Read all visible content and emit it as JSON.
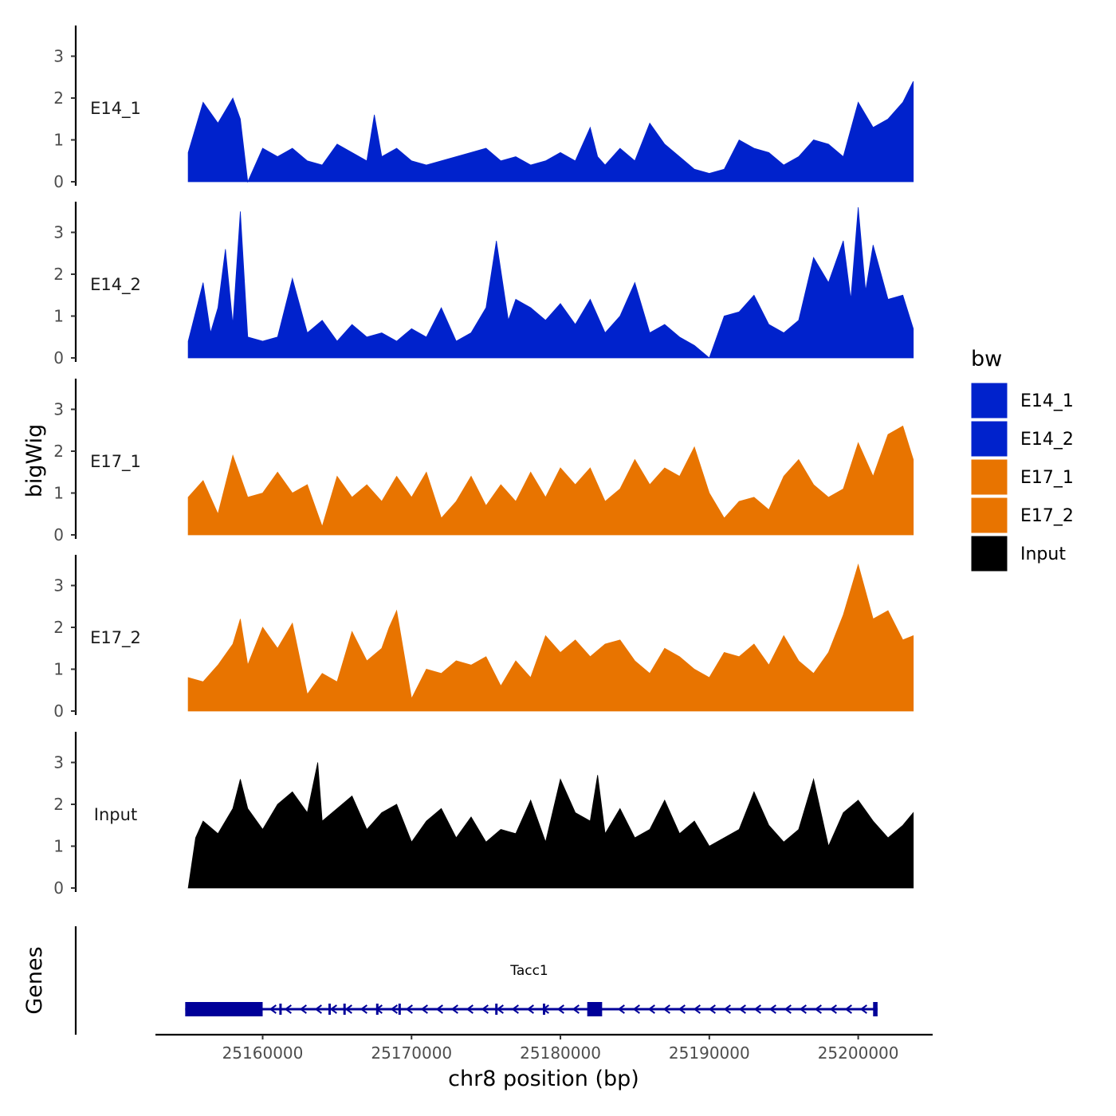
{
  "chart_data": {
    "type": "area",
    "title": "",
    "xlabel": "chr8 position (bp)",
    "ylabel": "bigWig",
    "genes_label": "Genes",
    "xlim": [
      25152800,
      25205000
    ],
    "x_ticks": [
      25160000,
      25170000,
      25180000,
      25190000,
      25200000
    ],
    "x_tick_labels": [
      "25160000",
      "25170000",
      "25180000",
      "25190000",
      "25200000"
    ],
    "ylim": [
      0,
      3.7
    ],
    "y_ticks": [
      0,
      1,
      2,
      3
    ],
    "y_tick_labels": [
      "0",
      "1",
      "2",
      "3"
    ],
    "legend": {
      "title": "bw",
      "position": "right",
      "entries": [
        {
          "name": "E14_1",
          "color": "#0022CC"
        },
        {
          "name": "E14_2",
          "color": "#0022CC"
        },
        {
          "name": "E17_1",
          "color": "#E87400"
        },
        {
          "name": "E17_2",
          "color": "#E87400"
        },
        {
          "name": "Input",
          "color": "#000000"
        }
      ]
    },
    "tracks": [
      {
        "name": "E14_1",
        "color": "#0022CC",
        "x": [
          25155000,
          25156000,
          25157000,
          25158000,
          25158500,
          25159000,
          25160000,
          25161000,
          25162000,
          25163000,
          25164000,
          25165000,
          25166000,
          25167000,
          25167500,
          25168000,
          25169000,
          25170000,
          25171000,
          25172000,
          25173000,
          25174000,
          25175000,
          25176000,
          25177000,
          25178000,
          25179000,
          25180000,
          25181000,
          25182000,
          25182500,
          25183000,
          25184000,
          25185000,
          25186000,
          25187000,
          25188000,
          25189000,
          25190000,
          25191000,
          25192000,
          25193000,
          25194000,
          25195000,
          25196000,
          25197000,
          25198000,
          25199000,
          25200000,
          25201000,
          25202000,
          25203000,
          25203700
        ],
        "values": [
          0.7,
          1.9,
          1.4,
          2.0,
          1.5,
          0,
          0.8,
          0.6,
          0.8,
          0.5,
          0.4,
          0.9,
          0.7,
          0.5,
          1.6,
          0.6,
          0.8,
          0.5,
          0.4,
          0.5,
          0.6,
          0.7,
          0.8,
          0.5,
          0.6,
          0.4,
          0.5,
          0.7,
          0.5,
          1.3,
          0.6,
          0.4,
          0.8,
          0.5,
          1.4,
          0.9,
          0.6,
          0.3,
          0.2,
          0.3,
          1.0,
          0.8,
          0.7,
          0.4,
          0.6,
          1.0,
          0.9,
          0.6,
          1.9,
          1.3,
          1.5,
          1.9,
          2.4
        ]
      },
      {
        "name": "E14_2",
        "color": "#0022CC",
        "x": [
          25155000,
          25156000,
          25156500,
          25157000,
          25157500,
          25158000,
          25158500,
          25159000,
          25160000,
          25161000,
          25162000,
          25163000,
          25164000,
          25165000,
          25166000,
          25167000,
          25168000,
          25169000,
          25170000,
          25171000,
          25172000,
          25173000,
          25174000,
          25175000,
          25175700,
          25176500,
          25177000,
          25178000,
          25179000,
          25180000,
          25181000,
          25182000,
          25183000,
          25184000,
          25185000,
          25186000,
          25187000,
          25188000,
          25189000,
          25190000,
          25191000,
          25192000,
          25193000,
          25194000,
          25195000,
          25196000,
          25197000,
          25198000,
          25199000,
          25199500,
          25200000,
          25200500,
          25201000,
          25202000,
          25203000,
          25203700
        ],
        "values": [
          0.4,
          1.8,
          0.6,
          1.2,
          2.6,
          0.8,
          3.5,
          0.5,
          0.4,
          0.5,
          1.9,
          0.6,
          0.9,
          0.4,
          0.8,
          0.5,
          0.6,
          0.4,
          0.7,
          0.5,
          1.2,
          0.4,
          0.6,
          1.2,
          2.8,
          0.9,
          1.4,
          1.2,
          0.9,
          1.3,
          0.8,
          1.4,
          0.6,
          1.0,
          1.8,
          0.6,
          0.8,
          0.5,
          0.3,
          0,
          1.0,
          1.1,
          1.5,
          0.8,
          0.6,
          0.9,
          2.4,
          1.8,
          2.8,
          1.4,
          3.6,
          1.6,
          2.7,
          1.4,
          1.5,
          0.7
        ]
      },
      {
        "name": "E17_1",
        "color": "#E87400",
        "x": [
          25155000,
          25156000,
          25157000,
          25158000,
          25159000,
          25160000,
          25161000,
          25162000,
          25163000,
          25164000,
          25165000,
          25166000,
          25167000,
          25168000,
          25169000,
          25170000,
          25171000,
          25172000,
          25173000,
          25174000,
          25175000,
          25176000,
          25177000,
          25178000,
          25179000,
          25180000,
          25181000,
          25182000,
          25183000,
          25184000,
          25185000,
          25186000,
          25187000,
          25188000,
          25189000,
          25190000,
          25191000,
          25192000,
          25193000,
          25194000,
          25195000,
          25196000,
          25197000,
          25198000,
          25199000,
          25200000,
          25201000,
          25202000,
          25203000,
          25203700
        ],
        "values": [
          0.9,
          1.3,
          0.5,
          1.9,
          0.9,
          1.0,
          1.5,
          1.0,
          1.2,
          0.2,
          1.4,
          0.9,
          1.2,
          0.8,
          1.4,
          0.9,
          1.5,
          0.4,
          0.8,
          1.4,
          0.7,
          1.2,
          0.8,
          1.5,
          0.9,
          1.6,
          1.2,
          1.6,
          0.8,
          1.1,
          1.8,
          1.2,
          1.6,
          1.4,
          2.1,
          1.0,
          0.4,
          0.8,
          0.9,
          0.6,
          1.4,
          1.8,
          1.2,
          0.9,
          1.1,
          2.2,
          1.4,
          2.4,
          2.6,
          1.8
        ]
      },
      {
        "name": "E17_2",
        "color": "#E87400",
        "x": [
          25155000,
          25156000,
          25157000,
          25158000,
          25158500,
          25159000,
          25160000,
          25161000,
          25162000,
          25163000,
          25164000,
          25165000,
          25166000,
          25167000,
          25168000,
          25168500,
          25169000,
          25170000,
          25171000,
          25172000,
          25173000,
          25174000,
          25175000,
          25176000,
          25177000,
          25178000,
          25179000,
          25180000,
          25181000,
          25182000,
          25183000,
          25184000,
          25185000,
          25186000,
          25187000,
          25188000,
          25189000,
          25190000,
          25191000,
          25192000,
          25193000,
          25194000,
          25195000,
          25196000,
          25197000,
          25198000,
          25199000,
          25200000,
          25201000,
          25202000,
          25203000,
          25203700
        ],
        "values": [
          0.8,
          0.7,
          1.1,
          1.6,
          2.2,
          1.1,
          2.0,
          1.5,
          2.1,
          0.4,
          0.9,
          0.7,
          1.9,
          1.2,
          1.5,
          2.0,
          2.4,
          0.3,
          1.0,
          0.9,
          1.2,
          1.1,
          1.3,
          0.6,
          1.2,
          0.8,
          1.8,
          1.4,
          1.7,
          1.3,
          1.6,
          1.7,
          1.2,
          0.9,
          1.5,
          1.3,
          1.0,
          0.8,
          1.4,
          1.3,
          1.6,
          1.1,
          1.8,
          1.2,
          0.9,
          1.4,
          2.3,
          3.5,
          2.2,
          2.4,
          1.7,
          1.8
        ]
      },
      {
        "name": "Input",
        "color": "#000000",
        "x": [
          25155000,
          25155500,
          25156000,
          25157000,
          25158000,
          25158500,
          25159000,
          25160000,
          25161000,
          25162000,
          25163000,
          25163700,
          25164000,
          25165000,
          25166000,
          25167000,
          25168000,
          25169000,
          25170000,
          25171000,
          25172000,
          25173000,
          25174000,
          25175000,
          25176000,
          25177000,
          25178000,
          25179000,
          25180000,
          25181000,
          25182000,
          25182500,
          25183000,
          25184000,
          25185000,
          25186000,
          25187000,
          25188000,
          25189000,
          25190000,
          25191000,
          25192000,
          25193000,
          25194000,
          25195000,
          25196000,
          25197000,
          25198000,
          25199000,
          25200000,
          25201000,
          25202000,
          25203000,
          25203700
        ],
        "values": [
          0,
          1.2,
          1.6,
          1.3,
          1.9,
          2.6,
          1.9,
          1.4,
          2.0,
          2.3,
          1.8,
          3.0,
          1.6,
          1.9,
          2.2,
          1.4,
          1.8,
          2.0,
          1.1,
          1.6,
          1.9,
          1.2,
          1.7,
          1.1,
          1.4,
          1.3,
          2.1,
          1.1,
          2.6,
          1.8,
          1.6,
          2.7,
          1.3,
          1.9,
          1.2,
          1.4,
          2.1,
          1.3,
          1.6,
          1.0,
          1.2,
          1.4,
          2.3,
          1.5,
          1.1,
          1.4,
          2.6,
          1.0,
          1.8,
          2.1,
          1.6,
          1.2,
          1.5,
          1.8
        ]
      }
    ],
    "gene": {
      "name": "Tacc1",
      "strand": "-",
      "start": 25154800,
      "end": 25201300,
      "exons": [
        [
          25154800,
          25160000
        ],
        [
          25181800,
          25182800
        ],
        [
          25201000,
          25201300
        ]
      ],
      "small_exons": [
        25161200,
        25164500,
        25165500,
        25167700,
        25169200,
        25175700,
        25178900
      ]
    }
  }
}
